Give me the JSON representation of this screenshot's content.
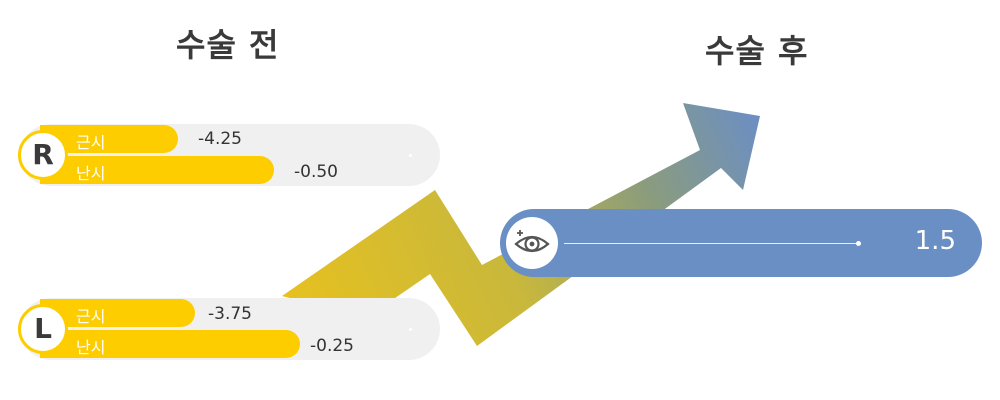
{
  "headings": {
    "before": "수술 전",
    "after": "수술 후"
  },
  "colors": {
    "bar": "#fecd00",
    "after_bar": "#6a8fc4",
    "track": "#f0f0f0"
  },
  "eyes": [
    {
      "badge": "R",
      "rows": [
        {
          "label": "근시",
          "value": "-4.25"
        },
        {
          "label": "난시",
          "value": "-0.50"
        }
      ]
    },
    {
      "badge": "L",
      "rows": [
        {
          "label": "근시",
          "value": "-3.75"
        },
        {
          "label": "난시",
          "value": "-0.25"
        }
      ]
    }
  ],
  "after": {
    "icon": "eye-icon",
    "value": "1.5"
  }
}
